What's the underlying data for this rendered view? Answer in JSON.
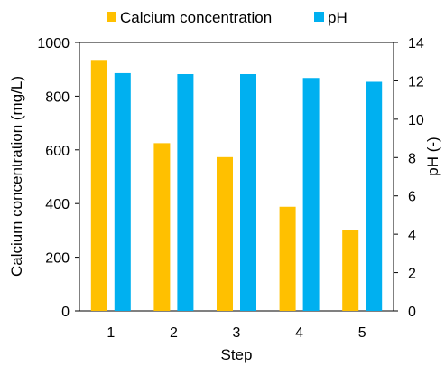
{
  "chart_data": {
    "type": "bar",
    "categories": [
      "1",
      "2",
      "3",
      "4",
      "5"
    ],
    "xlabel": "Step",
    "ylabel_left": "Calcium concentration (mg/L)",
    "ylabel_right": "pH (-)",
    "ylim_left": [
      0,
      1000
    ],
    "ylim_right": [
      0,
      14
    ],
    "yticks_left": [
      "0",
      "200",
      "400",
      "600",
      "800",
      "1000"
    ],
    "yticks_right": [
      "0",
      "2",
      "4",
      "6",
      "8",
      "10",
      "12",
      "14"
    ],
    "grid": false,
    "legend_position": "top",
    "series": [
      {
        "name": "Calcium concentration",
        "axis": "left",
        "color": "#FFC000",
        "values": [
          935,
          625,
          573,
          388,
          303
        ]
      },
      {
        "name": "pH",
        "axis": "right",
        "color": "#00B0F0",
        "values": [
          12.4,
          12.35,
          12.35,
          12.15,
          11.95
        ]
      }
    ]
  }
}
